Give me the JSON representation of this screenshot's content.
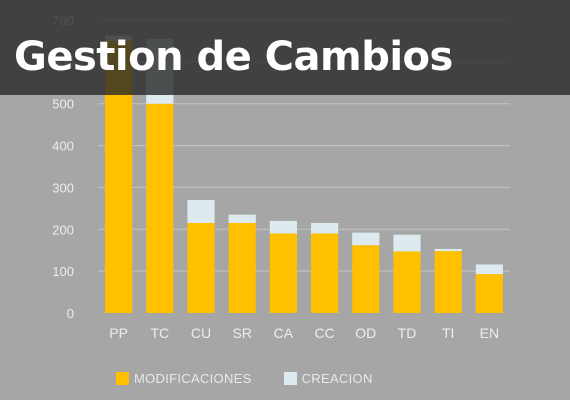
{
  "banner": {
    "title": "Gestion de Cambios"
  },
  "colors": {
    "background": "#a6a6a6",
    "gridline": "#c4c4c4",
    "modificaciones": "#ffc000",
    "creacion": "#ddebf1",
    "tick_text": "#ededed",
    "banner": "#282828"
  },
  "chart_data": {
    "type": "bar",
    "stacked": true,
    "title": "",
    "xlabel": "",
    "ylabel": "",
    "categories": [
      "PP",
      "TC",
      "CU",
      "SR",
      "CA",
      "CC",
      "OD",
      "TD",
      "TI",
      "EN"
    ],
    "series": [
      {
        "name": "MODIFICACIONES",
        "color": "#ffc000",
        "values": [
          650,
          500,
          215,
          215,
          190,
          190,
          162,
          147,
          148,
          93
        ]
      },
      {
        "name": "CREACION",
        "color": "#ddebf1",
        "values": [
          13,
          155,
          55,
          20,
          30,
          25,
          30,
          40,
          5,
          23
        ]
      }
    ],
    "ylim": [
      0,
      700
    ],
    "yticks": [
      0,
      100,
      200,
      300,
      400,
      500,
      600,
      700
    ],
    "grid": true,
    "legend_position": "bottom"
  }
}
